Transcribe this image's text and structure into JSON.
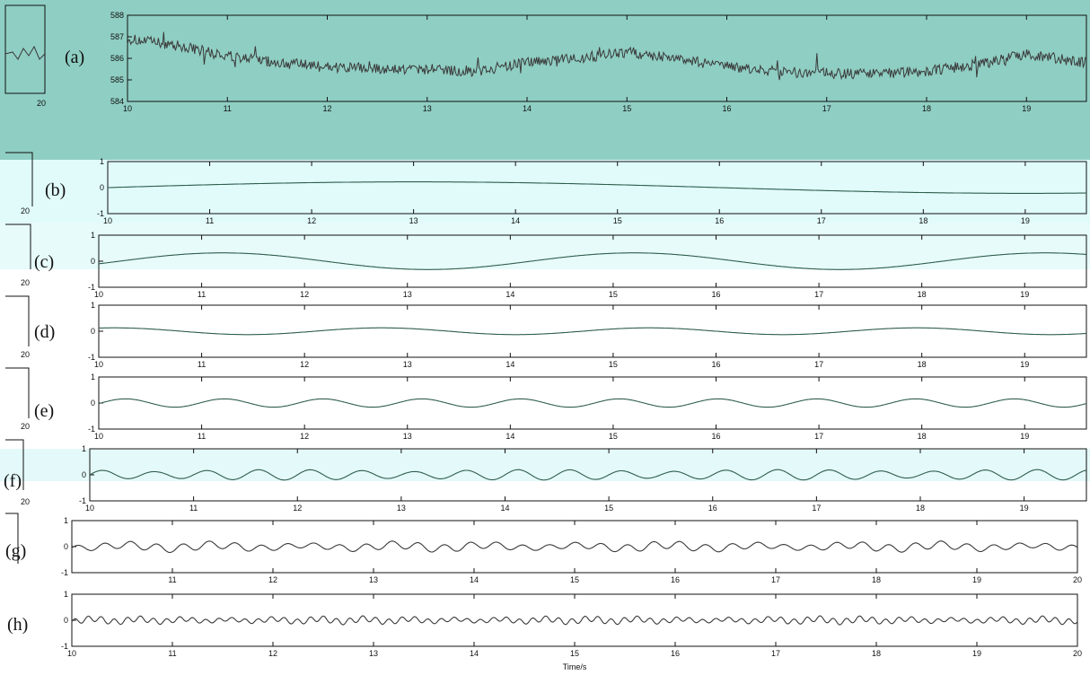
{
  "colors": {
    "panel_a_band": "#8fcec3",
    "panel_b_band": "#e0fbfa",
    "panel_c_band": "#e6fbfa",
    "panel_f_band": "#e4f9f9",
    "trace": "#3a3a3a",
    "trace_green": "#2f5e4e",
    "axis": "#111111"
  },
  "chart_data": [
    {
      "panel": "(a)",
      "type": "line",
      "xlim": [
        10,
        19.6
      ],
      "ylim": [
        584,
        588
      ],
      "xticks": [
        "10",
        "11",
        "12",
        "13",
        "14",
        "15",
        "16",
        "17",
        "18",
        "19"
      ],
      "yticks": [
        "584",
        "585",
        "586",
        "587",
        "588"
      ],
      "trend": [
        [
          10,
          586.9
        ],
        [
          10.5,
          586.6
        ],
        [
          11,
          586.1
        ],
        [
          11.5,
          585.8
        ],
        [
          12,
          585.6
        ],
        [
          12.5,
          585.5
        ],
        [
          13,
          585.5
        ],
        [
          13.5,
          585.4
        ],
        [
          14,
          585.8
        ],
        [
          14.5,
          586.0
        ],
        [
          15,
          586.3
        ],
        [
          15.5,
          586.0
        ],
        [
          16,
          585.6
        ],
        [
          16.5,
          585.4
        ],
        [
          17,
          585.3
        ],
        [
          17.5,
          585.3
        ],
        [
          18,
          585.4
        ],
        [
          18.5,
          585.7
        ],
        [
          19,
          586.2
        ],
        [
          19.6,
          585.8
        ]
      ],
      "noise_amplitude": 0.25
    },
    {
      "panel": "(b)",
      "type": "line",
      "xlim": [
        10,
        19.6
      ],
      "ylim": [
        -1,
        1
      ],
      "xticks": [
        "10",
        "11",
        "12",
        "13",
        "14",
        "15",
        "16",
        "17",
        "18",
        "19"
      ],
      "yticks": [
        "-1",
        "0",
        "1"
      ],
      "components": [
        {
          "amp": 0.22,
          "period": 12,
          "phase": 10
        }
      ]
    },
    {
      "panel": "(c)",
      "type": "line",
      "xlim": [
        10,
        19.6
      ],
      "ylim": [
        -1,
        1
      ],
      "xticks": [
        "10",
        "11",
        "12",
        "13",
        "14",
        "15",
        "16",
        "17",
        "18",
        "19"
      ],
      "yticks": [
        "-1",
        "0",
        "1"
      ],
      "components": [
        {
          "amp": 0.32,
          "period": 4,
          "phase": 10.2
        }
      ]
    },
    {
      "panel": "(d)",
      "type": "line",
      "xlim": [
        10,
        19.6
      ],
      "ylim": [
        -1,
        1
      ],
      "xticks": [
        "10",
        "11",
        "12",
        "13",
        "14",
        "15",
        "16",
        "17",
        "18",
        "19"
      ],
      "yticks": [
        "-1",
        "0",
        "1"
      ],
      "components": [
        {
          "amp": 0.13,
          "period": 2.6,
          "phase": 12.1
        }
      ]
    },
    {
      "panel": "(e)",
      "type": "line",
      "xlim": [
        10,
        19.6
      ],
      "ylim": [
        -1,
        1
      ],
      "xticks": [
        "10",
        "11",
        "12",
        "13",
        "14",
        "15",
        "16",
        "17",
        "18",
        "19"
      ],
      "yticks": [
        "-1",
        "0",
        "1"
      ],
      "components": [
        {
          "amp": 0.16,
          "period": 0.96,
          "phase": 10.02
        }
      ]
    },
    {
      "panel": "(f)",
      "type": "line",
      "xlim": [
        10,
        19.6
      ],
      "ylim": [
        -1,
        1
      ],
      "xticks": [
        "10",
        "11",
        "12",
        "13",
        "14",
        "15",
        "16",
        "17",
        "18",
        "19"
      ],
      "yticks": [
        "-1",
        "0",
        "1"
      ],
      "components": [
        {
          "amp": 0.16,
          "period": 0.5,
          "phase": 10.0
        }
      ]
    },
    {
      "panel": "(g)",
      "type": "line",
      "xlim": [
        10,
        20
      ],
      "ylim": [
        -1,
        1
      ],
      "xticks": [
        "11",
        "12",
        "13",
        "14",
        "15",
        "16",
        "17",
        "18",
        "19",
        "20"
      ],
      "yticks": [
        "-1",
        "0",
        "1"
      ],
      "components": [
        {
          "amp": 0.12,
          "period": 0.26,
          "phase": 10.0
        },
        {
          "amp": 0.06,
          "period": 0.9,
          "phase": 10.3
        }
      ]
    },
    {
      "panel": "(h)",
      "type": "line",
      "xlim": [
        10,
        20
      ],
      "ylim": [
        -1,
        1
      ],
      "xticks": [
        "10",
        "11",
        "12",
        "13",
        "14",
        "15",
        "16",
        "17",
        "18",
        "19",
        "20"
      ],
      "yticks": [
        "-1",
        "0",
        "1"
      ],
      "xlabel": "Time/s",
      "components": [
        {
          "amp": 0.09,
          "period": 0.13,
          "phase": 10.0
        },
        {
          "amp": 0.05,
          "period": 0.45,
          "phase": 10.1
        }
      ]
    }
  ],
  "left_strip": {
    "tick_labels": [
      "20",
      "20",
      "20",
      "20",
      "20",
      "20"
    ]
  }
}
